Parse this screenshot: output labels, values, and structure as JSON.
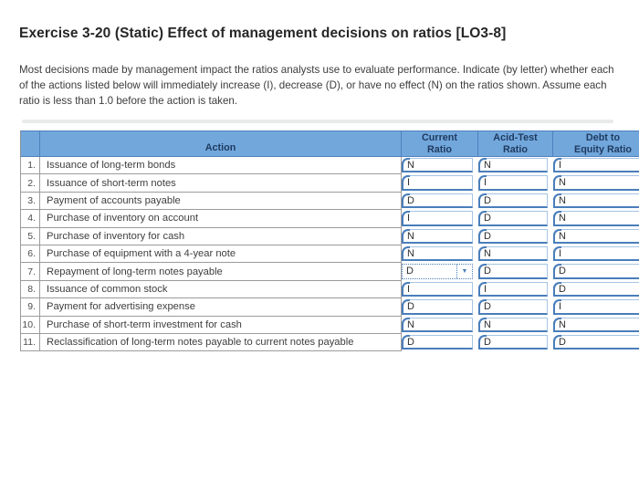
{
  "title": "Exercise 3-20 (Static) Effect of management decisions on ratios [LO3-8]",
  "instructions": "Most decisions made by management impact the ratios analysts use to evaluate performance. Indicate (by letter) whether each of the actions listed below will immediately increase (I), decrease (D), or have no effect (N) on the ratios shown. Assume each ratio is less than 1.0 before the action is taken.",
  "colors": {
    "header_bg": "#72a7dc",
    "header_border": "#4f81bd",
    "header_text": "#1e3a5f",
    "answer_cell_border": "#4a7ebb",
    "grid_line": "#9b9b9b",
    "page_bg": "#ffffff"
  },
  "icons": {
    "dropdown_arrow": "▼"
  },
  "table": {
    "headers": {
      "number": "",
      "action": "Action",
      "current": "Current\nRatio",
      "acid": "Acid-Test\nRatio",
      "debt": "Debt to\nEquity Ratio"
    },
    "rows": [
      {
        "num": "1.",
        "action": "Issuance of long-term bonds",
        "current": "N",
        "acid": "N",
        "debt": "I"
      },
      {
        "num": "2.",
        "action": "Issuance of short-term notes",
        "current": "I",
        "acid": "I",
        "debt": "N"
      },
      {
        "num": "3.",
        "action": "Payment of accounts payable",
        "current": "D",
        "acid": "D",
        "debt": "N"
      },
      {
        "num": "4.",
        "action": "Purchase of inventory on account",
        "current": "I",
        "acid": "D",
        "debt": "N"
      },
      {
        "num": "5.",
        "action": "Purchase of inventory for cash",
        "current": "N",
        "acid": "D",
        "debt": "N"
      },
      {
        "num": "6.",
        "action": "Purchase of equipment with a 4-year note",
        "current": "N",
        "acid": "N",
        "debt": "I"
      },
      {
        "num": "7.",
        "action": "Repayment of long-term notes payable",
        "current": "D",
        "acid": "D",
        "debt": "D",
        "focused": "current"
      },
      {
        "num": "8.",
        "action": "Issuance of common stock",
        "current": "I",
        "acid": "I",
        "debt": "D"
      },
      {
        "num": "9.",
        "action": "Payment for advertising expense",
        "current": "D",
        "acid": "D",
        "debt": "I"
      },
      {
        "num": "10.",
        "action": "Purchase of short-term investment for cash",
        "current": "N",
        "acid": "N",
        "debt": "N"
      },
      {
        "num": "11.",
        "action": "Reclassification of long-term notes payable to current notes payable",
        "current": "D",
        "acid": "D",
        "debt": "D"
      }
    ]
  }
}
